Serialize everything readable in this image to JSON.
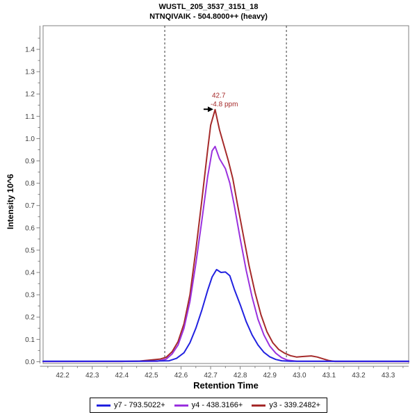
{
  "header": {
    "title": "WUSTL_205_3537_3151_18",
    "subtitle": "NTNQIVAIK - 504.8000++ (heavy)"
  },
  "chart_data": {
    "type": "line",
    "title": "WUSTL_205_3537_3151_18",
    "subtitle": "NTNQIVAIK - 504.8000++ (heavy)",
    "xlabel": "Retention Time",
    "ylabel": "Intensity 10^6",
    "xlim": [
      42.134,
      43.369
    ],
    "ylim": [
      -0.008,
      1.506
    ],
    "x_major_ticks": [
      42.2,
      42.3,
      42.4,
      42.5,
      42.6,
      42.7,
      42.8,
      42.9,
      43.0,
      43.1,
      43.2,
      43.3
    ],
    "y_major_ticks": [
      0.0,
      0.1,
      0.2,
      0.3,
      0.4,
      0.5,
      0.6,
      0.7,
      0.8,
      0.9,
      1.0,
      1.1,
      1.2,
      1.3,
      1.4
    ],
    "x_minor_step": 0.05,
    "y_minor_step": 0.05,
    "grid": false,
    "legend_position": "bottom",
    "frame_color": "#808080",
    "tick_label_color": "#3c3c3c",
    "boundary_color": "#3a3a3a",
    "integration_boundaries": [
      42.545,
      42.956
    ],
    "annotation": {
      "time": "42.7",
      "ppm": "-4.8 ppm",
      "x": 42.715,
      "y": 1.13,
      "color": "#a52a2a"
    },
    "series": [
      {
        "name": "y7 - 793.5022+",
        "color": "#2121e0",
        "points": [
          [
            42.134,
            0.002
          ],
          [
            42.45,
            0.002
          ],
          [
            42.56,
            0.004
          ],
          [
            42.585,
            0.015
          ],
          [
            42.61,
            0.04
          ],
          [
            42.63,
            0.085
          ],
          [
            42.65,
            0.15
          ],
          [
            42.67,
            0.23
          ],
          [
            42.69,
            0.32
          ],
          [
            42.705,
            0.38
          ],
          [
            42.72,
            0.413
          ],
          [
            42.735,
            0.4
          ],
          [
            42.75,
            0.402
          ],
          [
            42.765,
            0.385
          ],
          [
            42.78,
            0.325
          ],
          [
            42.8,
            0.255
          ],
          [
            42.82,
            0.18
          ],
          [
            42.84,
            0.12
          ],
          [
            42.86,
            0.075
          ],
          [
            42.88,
            0.042
          ],
          [
            42.9,
            0.022
          ],
          [
            42.92,
            0.01
          ],
          [
            42.94,
            0.004
          ],
          [
            42.97,
            0.002
          ],
          [
            43.369,
            0.002
          ]
        ]
      },
      {
        "name": "y4 - 438.3166+",
        "color": "#9a31de",
        "points": [
          [
            42.134,
            0.001
          ],
          [
            42.52,
            0.002
          ],
          [
            42.55,
            0.012
          ],
          [
            42.57,
            0.035
          ],
          [
            42.59,
            0.075
          ],
          [
            42.61,
            0.15
          ],
          [
            42.63,
            0.27
          ],
          [
            42.65,
            0.44
          ],
          [
            42.67,
            0.63
          ],
          [
            42.69,
            0.83
          ],
          [
            42.705,
            0.945
          ],
          [
            42.715,
            0.965
          ],
          [
            42.73,
            0.91
          ],
          [
            42.75,
            0.865
          ],
          [
            42.765,
            0.8
          ],
          [
            42.78,
            0.7
          ],
          [
            42.8,
            0.55
          ],
          [
            42.82,
            0.41
          ],
          [
            42.84,
            0.29
          ],
          [
            42.86,
            0.19
          ],
          [
            42.88,
            0.12
          ],
          [
            42.9,
            0.07
          ],
          [
            42.92,
            0.038
          ],
          [
            42.94,
            0.018
          ],
          [
            42.96,
            0.007
          ],
          [
            42.99,
            0.002
          ],
          [
            43.369,
            0.001
          ]
        ]
      },
      {
        "name": "y3 - 339.2482+",
        "color": "#a52a2a",
        "points": [
          [
            42.134,
            0.001
          ],
          [
            42.4,
            0.001
          ],
          [
            42.46,
            0.003
          ],
          [
            42.5,
            0.008
          ],
          [
            42.53,
            0.012
          ],
          [
            42.55,
            0.02
          ],
          [
            42.57,
            0.045
          ],
          [
            42.59,
            0.09
          ],
          [
            42.61,
            0.17
          ],
          [
            42.63,
            0.3
          ],
          [
            42.65,
            0.5
          ],
          [
            42.67,
            0.72
          ],
          [
            42.69,
            0.95
          ],
          [
            42.7,
            1.06
          ],
          [
            42.715,
            1.13
          ],
          [
            42.73,
            1.04
          ],
          [
            42.745,
            0.97
          ],
          [
            42.76,
            0.9
          ],
          [
            42.775,
            0.82
          ],
          [
            42.79,
            0.71
          ],
          [
            42.81,
            0.57
          ],
          [
            42.83,
            0.43
          ],
          [
            42.85,
            0.31
          ],
          [
            42.87,
            0.21
          ],
          [
            42.89,
            0.135
          ],
          [
            42.91,
            0.085
          ],
          [
            42.93,
            0.055
          ],
          [
            42.95,
            0.038
          ],
          [
            42.97,
            0.027
          ],
          [
            42.99,
            0.021
          ],
          [
            43.01,
            0.023
          ],
          [
            43.04,
            0.026
          ],
          [
            43.06,
            0.021
          ],
          [
            43.08,
            0.013
          ],
          [
            43.1,
            0.005
          ],
          [
            43.12,
            0.001
          ],
          [
            43.369,
            0.001
          ]
        ]
      }
    ]
  }
}
